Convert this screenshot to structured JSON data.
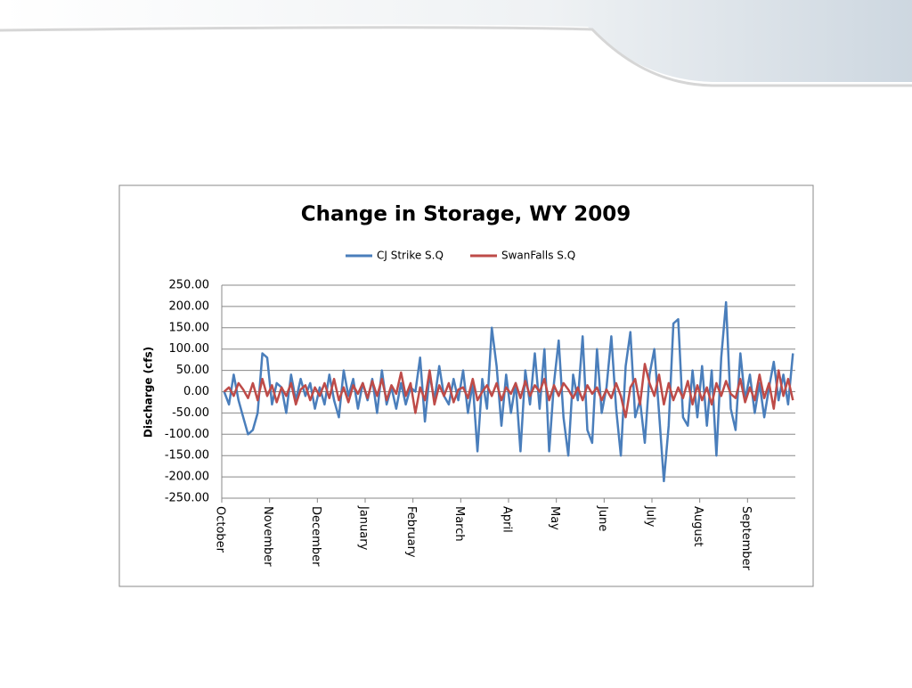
{
  "chart_data": {
    "type": "line",
    "title": "Change in Storage, WY 2009",
    "y_label": "Discharge (cfs)",
    "categories": [
      "October",
      null,
      null,
      null,
      null,
      null,
      null,
      null,
      null,
      null,
      "November",
      null,
      null,
      null,
      null,
      null,
      null,
      null,
      null,
      null,
      "December",
      null,
      null,
      null,
      null,
      null,
      null,
      null,
      null,
      null,
      "January",
      null,
      null,
      null,
      null,
      null,
      null,
      null,
      null,
      null,
      "February",
      null,
      null,
      null,
      null,
      null,
      null,
      null,
      null,
      null,
      "March",
      null,
      null,
      null,
      null,
      null,
      null,
      null,
      null,
      null,
      "April",
      null,
      null,
      null,
      null,
      null,
      null,
      null,
      null,
      null,
      "May",
      null,
      null,
      null,
      null,
      null,
      null,
      null,
      null,
      null,
      "June",
      null,
      null,
      null,
      null,
      null,
      null,
      null,
      null,
      null,
      "July",
      null,
      null,
      null,
      null,
      null,
      null,
      null,
      null,
      null,
      "August",
      null,
      null,
      null,
      null,
      null,
      null,
      null,
      null,
      null,
      "September",
      null,
      null,
      null,
      null,
      null,
      null,
      null,
      null,
      null
    ],
    "series": [
      {
        "name": "CJ Strike S.Q",
        "color": "#4a7ebb",
        "values": [
          0,
          -30,
          40,
          -20,
          -60,
          -100,
          -90,
          -50,
          90,
          80,
          -30,
          20,
          10,
          -50,
          40,
          -20,
          30,
          -10,
          20,
          -40,
          10,
          -30,
          40,
          -20,
          -60,
          50,
          -10,
          30,
          -40,
          20,
          -20,
          30,
          -50,
          50,
          -30,
          10,
          -40,
          20,
          -30,
          10,
          0,
          80,
          -70,
          40,
          -20,
          60,
          -10,
          -30,
          30,
          -20,
          50,
          -50,
          20,
          -140,
          30,
          -40,
          150,
          60,
          -80,
          40,
          -50,
          20,
          -140,
          50,
          -30,
          90,
          -40,
          100,
          -140,
          20,
          120,
          -60,
          -150,
          40,
          -20,
          130,
          -90,
          -120,
          100,
          -50,
          10,
          130,
          -40,
          -150,
          60,
          140,
          -60,
          -20,
          -120,
          40,
          100,
          -50,
          -210,
          -80,
          160,
          170,
          -60,
          -80,
          50,
          -60,
          60,
          -80,
          50,
          -150,
          80,
          210,
          -40,
          -90,
          90,
          -20,
          40,
          -50,
          20,
          -60,
          10,
          70,
          -20,
          40,
          -30,
          90
        ]
      },
      {
        "name": "SwanFalls S.Q",
        "color": "#be4b48",
        "values": [
          0,
          10,
          -10,
          20,
          5,
          -15,
          20,
          -20,
          30,
          -10,
          15,
          -25,
          10,
          -10,
          20,
          -30,
          5,
          15,
          -20,
          10,
          -10,
          20,
          -15,
          30,
          -20,
          10,
          -25,
          15,
          -5,
          20,
          -15,
          25,
          -10,
          30,
          -20,
          15,
          -5,
          45,
          -10,
          20,
          -50,
          10,
          -20,
          50,
          -30,
          15,
          -10,
          20,
          -25,
          5,
          10,
          -15,
          30,
          -20,
          0,
          15,
          -10,
          20,
          -20,
          10,
          -5,
          20,
          -15,
          25,
          -10,
          15,
          0,
          30,
          -20,
          15,
          -10,
          20,
          5,
          -15,
          10,
          -20,
          15,
          -5,
          10,
          -20,
          5,
          -15,
          20,
          -10,
          -60,
          10,
          30,
          -30,
          65,
          20,
          -10,
          40,
          -30,
          20,
          -20,
          10,
          -15,
          25,
          -30,
          15,
          -20,
          10,
          -30,
          20,
          -10,
          25,
          -5,
          -15,
          30,
          -25,
          10,
          -20,
          40,
          -15,
          20,
          -40,
          50,
          -10,
          30,
          -20
        ]
      }
    ],
    "ylim": [
      -250,
      250
    ],
    "yticks": [
      {
        "value": -250,
        "label": "-250.00"
      },
      {
        "value": -200,
        "label": "-200.00"
      },
      {
        "value": -150,
        "label": "-150.00"
      },
      {
        "value": -100,
        "label": "-100.00"
      },
      {
        "value": -50,
        "label": "-50.00"
      },
      {
        "value": 0,
        "label": "0.00"
      },
      {
        "value": 50,
        "label": "50.00"
      },
      {
        "value": 100,
        "label": "100.00"
      },
      {
        "value": 150,
        "label": "150.00"
      },
      {
        "value": 200,
        "label": "200.00"
      },
      {
        "value": 250,
        "label": "250.00"
      }
    ],
    "grid": true,
    "legend": "top"
  }
}
